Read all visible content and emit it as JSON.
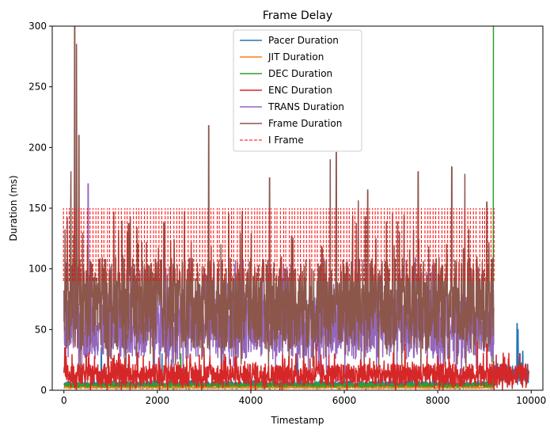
{
  "chart_data": {
    "type": "line",
    "title": "Frame Delay",
    "xlabel": "Timestamp",
    "ylabel": "Duration (ms)",
    "xlim": [
      -250,
      10250
    ],
    "ylim": [
      0,
      300
    ],
    "xticks": [
      0,
      2000,
      4000,
      6000,
      8000,
      10000
    ],
    "xtick_labels": [
      "0",
      "2000",
      "4000",
      "6000",
      "8000",
      "10000"
    ],
    "yticks": [
      0,
      50,
      100,
      150,
      200,
      250,
      300
    ],
    "ytick_labels": [
      "0",
      "50",
      "100",
      "150",
      "200",
      "250",
      "300"
    ],
    "grid": false,
    "legend_position": "upper center",
    "series": [
      {
        "name": "Pacer Duration",
        "color": "#1f77b4",
        "style": "solid",
        "profile": {
          "x_end": 9950,
          "base": 4,
          "noise": 5,
          "spikes": [
            [
              800,
              35
            ],
            [
              2100,
              30
            ],
            [
              5000,
              28
            ],
            [
              9150,
              18
            ],
            [
              9600,
              20
            ],
            [
              9700,
              55
            ],
            [
              9720,
              50
            ],
            [
              9760,
              30
            ],
            [
              9820,
              32
            ]
          ],
          "tail_from": 9200,
          "tail_base": 12,
          "tail_noise": 16
        }
      },
      {
        "name": "JIT Duration",
        "color": "#ff7f0e",
        "style": "solid",
        "profile": {
          "x_end": 9200,
          "base": 2,
          "noise": 1.5,
          "spikes": [
            [
              50,
              6
            ],
            [
              150,
              5
            ]
          ]
        }
      },
      {
        "name": "DEC Duration",
        "color": "#2ca02c",
        "style": "solid",
        "profile": {
          "x_end": 9200,
          "base": 4,
          "noise": 3,
          "spikes": [
            [
              2300,
              25
            ],
            [
              2500,
              30
            ],
            [
              9195,
              300
            ],
            [
              9205,
              300
            ]
          ]
        }
      },
      {
        "name": "ENC Duration",
        "color": "#d62728",
        "style": "solid",
        "profile": {
          "x_end": 9950,
          "base": 10,
          "noise": 18,
          "spikes": [
            [
              20,
              35
            ],
            [
              3000,
              35
            ],
            [
              5400,
              38
            ],
            [
              7300,
              38
            ],
            [
              8850,
              40
            ],
            [
              9050,
              38
            ]
          ]
        }
      },
      {
        "name": "TRANS Duration",
        "color": "#9467bd",
        "style": "solid",
        "profile": {
          "x_end": 9200,
          "base": 45,
          "noise": 55,
          "spikes": [
            [
              230,
              190
            ],
            [
              270,
              170
            ],
            [
              520,
              170
            ]
          ]
        }
      },
      {
        "name": "Frame Duration",
        "color": "#8c564b",
        "style": "solid",
        "profile": {
          "x_end": 9200,
          "base": 60,
          "noise": 75,
          "spikes": [
            [
              150,
              180
            ],
            [
              230,
              300
            ],
            [
              270,
              285
            ],
            [
              320,
              210
            ],
            [
              3100,
              218
            ],
            [
              4400,
              175
            ],
            [
              5700,
              190
            ],
            [
              5830,
              196
            ],
            [
              6500,
              165
            ],
            [
              6300,
              156
            ],
            [
              7580,
              180
            ],
            [
              8300,
              184
            ],
            [
              8580,
              178
            ],
            [
              9050,
              155
            ]
          ]
        }
      },
      {
        "name": "I Frame",
        "color": "#ff0000",
        "style": "dashed",
        "profile": {
          "x_from": 0,
          "x_to": 9200,
          "y_low": 90,
          "y_high": 150,
          "count": 150
        }
      }
    ]
  }
}
